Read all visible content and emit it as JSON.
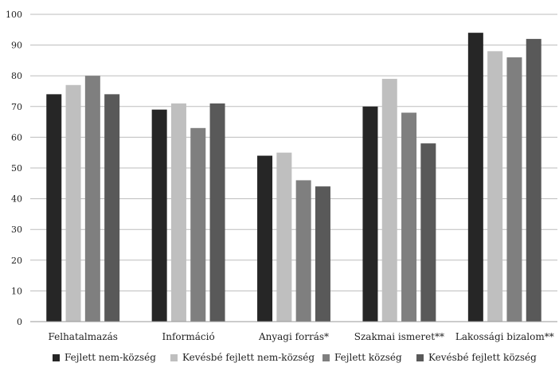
{
  "chart_data": {
    "type": "bar",
    "title": "",
    "xlabel": "",
    "ylabel": "",
    "ylim": [
      0,
      100
    ],
    "ytick_step": 10,
    "yticks": [
      "0",
      "10",
      "20",
      "30",
      "40",
      "50",
      "60",
      "70",
      "80",
      "90",
      "100"
    ],
    "grid": "horizontal",
    "legend_position": "bottom",
    "categories": [
      "Felhatalmazás",
      "Információ",
      "Anyagi forrás*",
      "Szakmai ismeret**",
      "Lakossági bizalom**"
    ],
    "series": [
      {
        "name": "Fejlett nem-község",
        "color": "#262626",
        "values": [
          74,
          69,
          54,
          70,
          94
        ]
      },
      {
        "name": "Kevésbé fejlett nem-község",
        "color": "#bfbfbf",
        "values": [
          77,
          71,
          55,
          79,
          88
        ]
      },
      {
        "name": "Fejlett község",
        "color": "#7f7f7f",
        "values": [
          80,
          63,
          46,
          68,
          86
        ]
      },
      {
        "name": "Kevésbé fejlett község",
        "color": "#595959",
        "values": [
          74,
          71,
          44,
          58,
          92
        ]
      }
    ]
  }
}
